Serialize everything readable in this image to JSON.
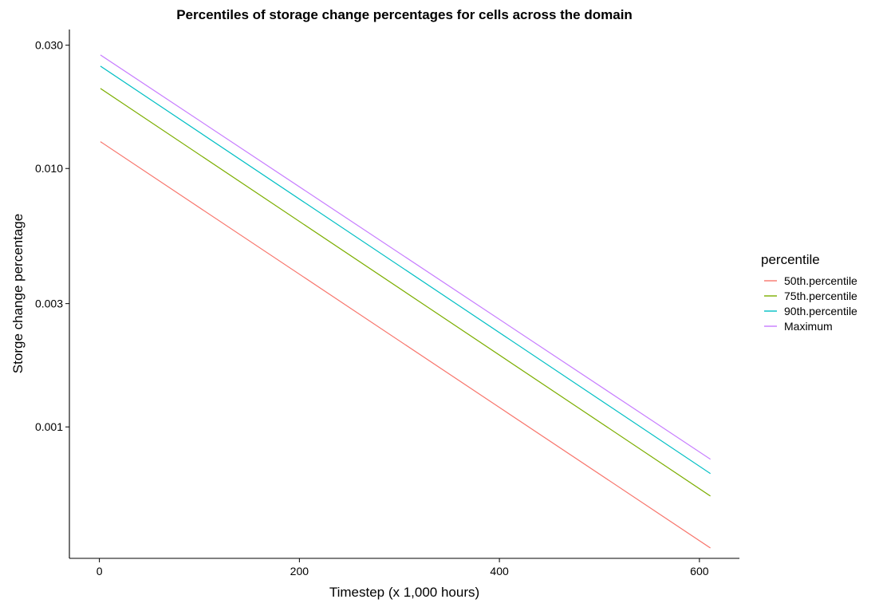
{
  "chart_data": {
    "type": "line",
    "title": "Percentiles of storage change percentages for cells across the domain",
    "xlabel": "Timestep (x 1,000 hours)",
    "ylabel": "Storge change percentage",
    "xlim": [
      -30,
      640
    ],
    "ylim": [
      0.00031,
      0.0345
    ],
    "yscale": "log",
    "grid": false,
    "legend_position": "right",
    "legend_title": "percentile",
    "x_ticks": [
      0,
      200,
      400,
      600
    ],
    "x_tick_labels": [
      "0",
      "200",
      "400",
      "600"
    ],
    "y_ticks": [
      0.001,
      0.003,
      0.01,
      0.03
    ],
    "y_tick_labels": [
      "0.001",
      "0.003",
      "0.010",
      "0.030"
    ],
    "series": [
      {
        "name": "50th.percentile",
        "color": "#F8766D",
        "x": [
          1,
          611
        ],
        "y": [
          0.0127,
          0.00034
        ]
      },
      {
        "name": "75th.percentile",
        "color": "#7CAE00",
        "x": [
          1,
          611
        ],
        "y": [
          0.0204,
          0.00054
        ]
      },
      {
        "name": "90th.percentile",
        "color": "#00BFC4",
        "x": [
          1,
          611
        ],
        "y": [
          0.0249,
          0.00066
        ]
      },
      {
        "name": "Maximum",
        "color": "#C77CFF",
        "x": [
          1,
          611
        ],
        "y": [
          0.0275,
          0.00075
        ]
      }
    ]
  }
}
